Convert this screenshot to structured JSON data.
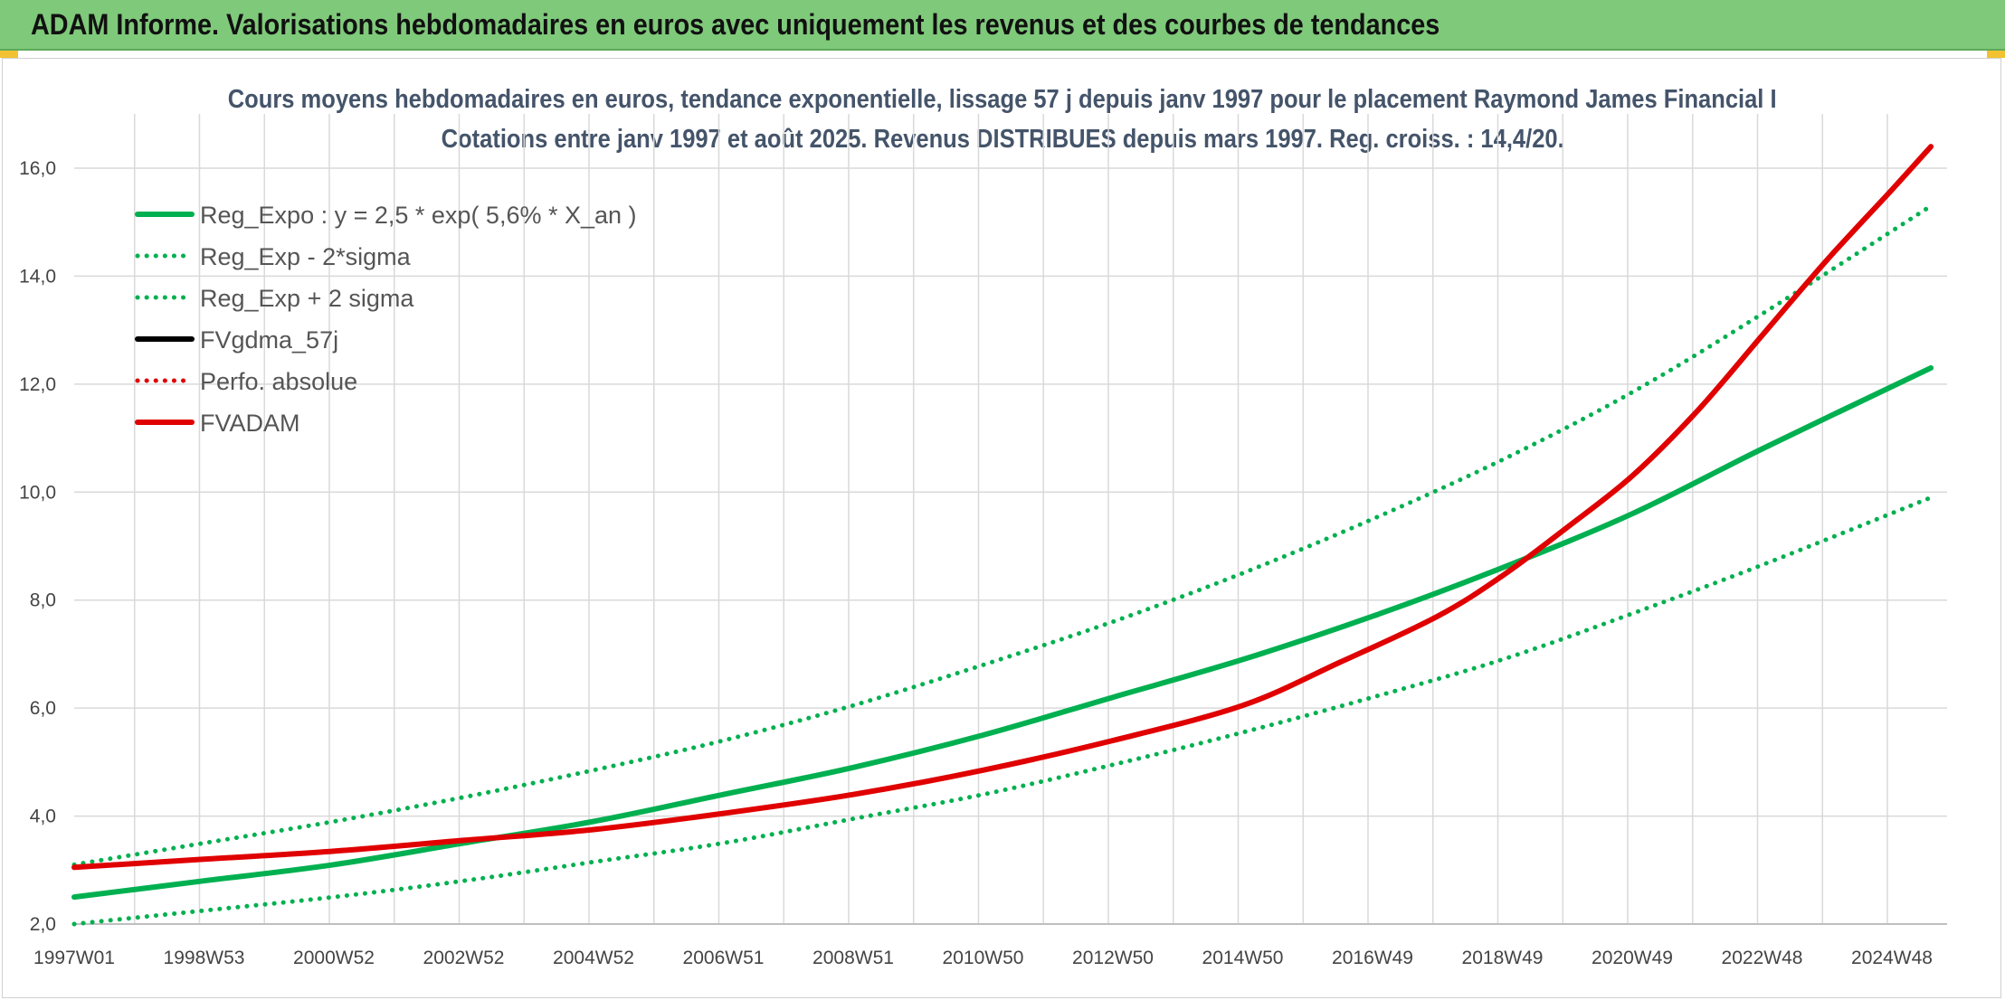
{
  "header": {
    "title": "ADAM Informe. Valorisations hebdomadaires en euros avec uniquement les revenus et des courbes de tendances"
  },
  "chart_data": {
    "type": "line",
    "title": "Cours moyens hebdomadaires en euros, tendance exponentielle, lissage 57 j depuis janv 1997 pour le placement Raymond James Financial I",
    "subtitle": "Cotations entre janv 1997 et août 2025. Revenus DISTRIBUES depuis mars 1997. Reg. croiss. : 14,4/20.",
    "xlabel": "",
    "ylabel": "",
    "ylim": [
      2.0,
      16.0
    ],
    "yticks": [
      "2,0",
      "4,0",
      "6,0",
      "8,0",
      "10,0",
      "12,0",
      "14,0",
      "16,0"
    ],
    "xticks": [
      "1997W01",
      "1998W53",
      "2000W52",
      "2002W52",
      "2004W52",
      "2006W51",
      "2008W51",
      "2010W50",
      "2012W50",
      "2014W50",
      "2016W49",
      "2018W49",
      "2020W49",
      "2022W48",
      "2024W48"
    ],
    "grid": true,
    "legend_position": "top-left",
    "x_unit": "year",
    "series": [
      {
        "name": "Reg_Expo : y = 2,5 * exp( 5,6% *  X_an )",
        "color": "#00b050",
        "style": "solid",
        "x": [
          1997.0,
          1999.0,
          2001.0,
          2003.0,
          2005.0,
          2007.0,
          2009.0,
          2011.0,
          2013.0,
          2015.0,
          2017.0,
          2019.0,
          2021.0,
          2023.0,
          2025.6
        ],
        "y": [
          2.5,
          2.8,
          3.1,
          3.5,
          3.9,
          4.4,
          4.9,
          5.5,
          6.2,
          6.9,
          7.7,
          8.6,
          9.6,
          10.8,
          12.3
        ]
      },
      {
        "name": "Reg_Exp - 2*sigma",
        "color": "#00b050",
        "style": "dotted",
        "x": [
          1997.0,
          1999.0,
          2001.0,
          2003.0,
          2005.0,
          2007.0,
          2009.0,
          2011.0,
          2013.0,
          2015.0,
          2017.0,
          2019.0,
          2021.0,
          2023.0,
          2025.6
        ],
        "y": [
          2.0,
          2.25,
          2.5,
          2.8,
          3.15,
          3.5,
          3.95,
          4.4,
          4.95,
          5.55,
          6.2,
          6.9,
          7.75,
          8.65,
          9.9
        ]
      },
      {
        "name": "Reg_Exp + 2 sigma",
        "color": "#00b050",
        "style": "dotted",
        "x": [
          1997.0,
          1999.0,
          2001.0,
          2003.0,
          2005.0,
          2007.0,
          2009.0,
          2011.0,
          2013.0,
          2015.0,
          2017.0,
          2019.0,
          2021.0,
          2023.0,
          2025.6
        ],
        "y": [
          3.1,
          3.5,
          3.9,
          4.35,
          4.85,
          5.4,
          6.05,
          6.8,
          7.6,
          8.5,
          9.5,
          10.6,
          11.85,
          13.3,
          15.3
        ]
      },
      {
        "name": "FVgdma_57j",
        "color": "#000000",
        "style": "solid",
        "x": [
          1997.0,
          1999.0,
          2001.0,
          2003.0,
          2005.0,
          2007.0,
          2009.0,
          2011.0,
          2013.0,
          2015.0,
          2016.5,
          2018.0,
          2019.0,
          2020.0,
          2021.0,
          2022.0,
          2023.0,
          2024.0,
          2025.0,
          2025.6
        ],
        "y": [
          3.05,
          3.2,
          3.35,
          3.55,
          3.75,
          4.05,
          4.4,
          4.85,
          5.4,
          6.05,
          6.85,
          7.7,
          8.45,
          9.35,
          10.3,
          11.5,
          12.9,
          14.3,
          15.6,
          16.4
        ]
      },
      {
        "name": "Perfo. absolue",
        "color": "#e00000",
        "style": "dotted",
        "x": [
          1997.0,
          1999.0,
          2001.0,
          2003.0,
          2005.0,
          2007.0,
          2009.0,
          2011.0,
          2013.0,
          2015.0,
          2016.5,
          2018.0,
          2019.0,
          2020.0,
          2021.0,
          2022.0,
          2023.0,
          2024.0,
          2025.0,
          2025.6
        ],
        "y": [
          3.05,
          3.2,
          3.35,
          3.55,
          3.75,
          4.05,
          4.4,
          4.85,
          5.4,
          6.05,
          6.85,
          7.7,
          8.45,
          9.35,
          10.3,
          11.5,
          12.9,
          14.3,
          15.6,
          16.4
        ]
      },
      {
        "name": "FVADAM",
        "color": "#e00000",
        "style": "solid",
        "x": [
          1997.0,
          1999.0,
          2001.0,
          2003.0,
          2005.0,
          2007.0,
          2009.0,
          2011.0,
          2013.0,
          2015.0,
          2016.5,
          2018.0,
          2019.0,
          2020.0,
          2021.0,
          2022.0,
          2023.0,
          2024.0,
          2025.0,
          2025.6
        ],
        "y": [
          3.05,
          3.2,
          3.35,
          3.55,
          3.75,
          4.05,
          4.4,
          4.85,
          5.4,
          6.05,
          6.85,
          7.7,
          8.45,
          9.35,
          10.3,
          11.5,
          12.9,
          14.3,
          15.6,
          16.4
        ]
      }
    ]
  }
}
